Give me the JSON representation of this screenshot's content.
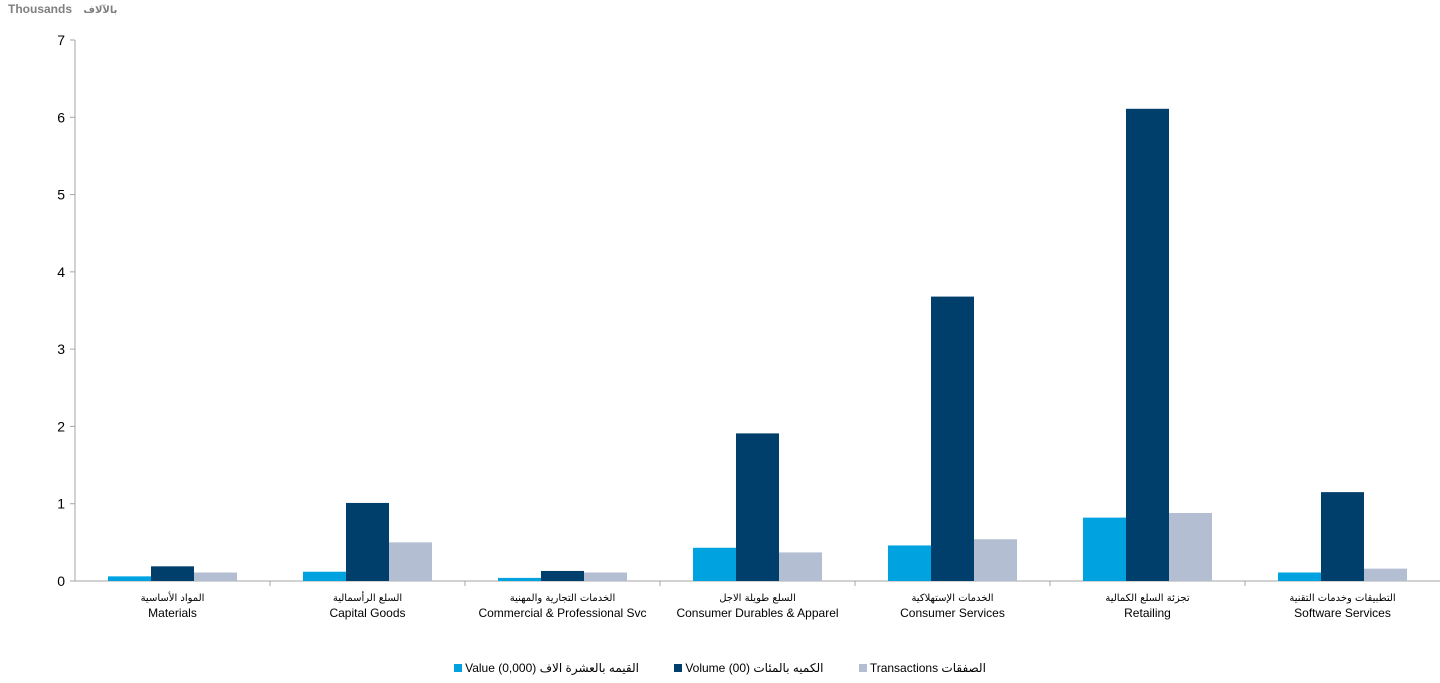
{
  "unit_label": {
    "en": "Thousands",
    "ar": "بالآلاف"
  },
  "chart_data": {
    "type": "bar",
    "ylim": [
      0,
      7
    ],
    "yticks": [
      0,
      1,
      2,
      3,
      4,
      5,
      6,
      7
    ],
    "grid": false,
    "legend_position": "bottom",
    "categories": [
      "Materials",
      "Capital Goods",
      "Commercial & Professional Svc",
      "Consumer Durables & Apparel",
      "Consumer Services",
      "Retailing",
      "Software Services"
    ],
    "categories_ar": [
      "المواد الأساسية",
      "السلع الرأسمالية",
      "الخدمات التجارية والمهنية",
      "السلع طويلة الاجل",
      "الخدمات الإستهلاكية",
      "تجزئة السلع الكمالية",
      "التطبيقات وخدمات التقنية"
    ],
    "series": [
      {
        "name": "Value (0,000)",
        "name_ar": "القيمه بالعشرة الاف",
        "color": "#00A3E0",
        "values": [
          0.06,
          0.12,
          0.04,
          0.43,
          0.46,
          0.82,
          0.11
        ]
      },
      {
        "name": "Volume (00)",
        "name_ar": "الكميه بالمئات",
        "color": "#003F6B",
        "values": [
          0.19,
          1.01,
          0.13,
          1.91,
          3.68,
          6.11,
          1.15
        ]
      },
      {
        "name": "Transactions",
        "name_ar": "الصفقات",
        "color": "#B3BED3",
        "values": [
          0.11,
          0.5,
          0.11,
          0.37,
          0.54,
          0.88,
          0.16
        ]
      }
    ]
  },
  "legend": [
    {
      "label": "Value  (0,000)  القيمه بالعشرة الاف",
      "color": "#00A3E0"
    },
    {
      "label": "Volume (00)  الكميه بالمئات",
      "color": "#003F6B"
    },
    {
      "label": "Transactions  الصفقات",
      "color": "#B3BED3"
    }
  ]
}
